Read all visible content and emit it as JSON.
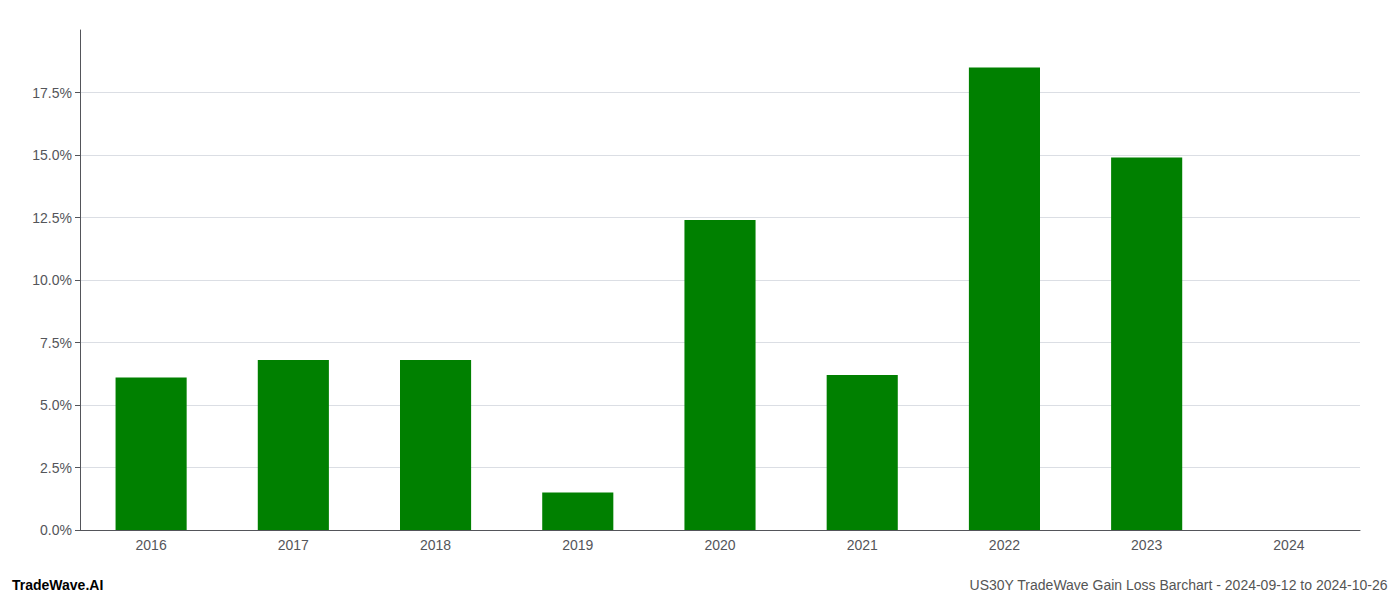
{
  "chart_data": {
    "type": "bar",
    "categories": [
      "2016",
      "2017",
      "2018",
      "2019",
      "2020",
      "2021",
      "2022",
      "2023",
      "2024"
    ],
    "values": [
      0.061,
      0.068,
      0.068,
      0.015,
      0.124,
      0.062,
      0.185,
      0.149,
      0.0
    ],
    "color": "#008000",
    "ylim": [
      0,
      0.2
    ],
    "yticks": [
      {
        "value": 0.0,
        "label": "0.0%"
      },
      {
        "value": 0.025,
        "label": "2.5%"
      },
      {
        "value": 0.05,
        "label": "5.0%"
      },
      {
        "value": 0.075,
        "label": "7.5%"
      },
      {
        "value": 0.1,
        "label": "10.0%"
      },
      {
        "value": 0.125,
        "label": "12.5%"
      },
      {
        "value": 0.15,
        "label": "15.0%"
      },
      {
        "value": 0.175,
        "label": "17.5%"
      }
    ],
    "grid": true,
    "annotations": [
      {
        "text": "TradeWave.AI",
        "color": "#000000"
      },
      {
        "text": "US30Y TradeWave Gain Loss Barchart - 2024-09-12 to 2024-10-26",
        "color": "#555555"
      }
    ]
  }
}
